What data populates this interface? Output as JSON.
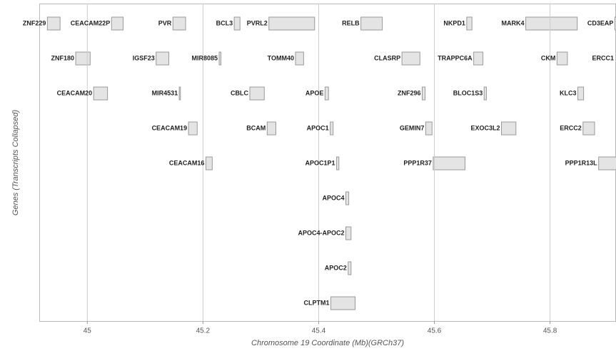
{
  "chart_data": {
    "type": "gene_track",
    "xlabel": "Chromosome 19 Coordinate (Mb)(GRCh37)",
    "ylabel": "Genes (Transcripts Collapsed)",
    "xlim": [
      44.917,
      45.914
    ],
    "xticks": [
      45,
      45.2,
      45.4,
      45.6,
      45.8
    ],
    "grid": true,
    "color": "#9a9a9a",
    "rows": [
      {
        "genes": [
          {
            "name": "ZNF229",
            "start": 44.931,
            "end": 44.953
          },
          {
            "name": "CEACAM22P",
            "start": 45.042,
            "end": 45.062
          },
          {
            "name": "PVR",
            "start": 45.148,
            "end": 45.17
          },
          {
            "name": "BCL3",
            "start": 45.254,
            "end": 45.264
          },
          {
            "name": "PVRL2",
            "start": 45.314,
            "end": 45.393
          },
          {
            "name": "RELB",
            "start": 45.473,
            "end": 45.51
          },
          {
            "name": "NKPD1",
            "start": 45.656,
            "end": 45.665
          },
          {
            "name": "MARK4",
            "start": 45.758,
            "end": 45.847
          },
          {
            "name": "CD3EAP",
            "start": 45.912,
            "end": 45.922
          }
        ]
      },
      {
        "genes": [
          {
            "name": "ZNF180",
            "start": 44.98,
            "end": 45.005
          },
          {
            "name": "IGSF23",
            "start": 45.119,
            "end": 45.141
          },
          {
            "name": "MIR8085",
            "start": 45.228,
            "end": 45.231
          },
          {
            "name": "TOMM40",
            "start": 45.36,
            "end": 45.374
          },
          {
            "name": "CLASRP",
            "start": 45.544,
            "end": 45.575
          },
          {
            "name": "TRAPPC6A",
            "start": 45.668,
            "end": 45.684
          },
          {
            "name": "CKM",
            "start": 45.812,
            "end": 45.83
          },
          {
            "name": "ERCC1",
            "start": 45.916,
            "end": 45.934
          }
        ]
      },
      {
        "genes": [
          {
            "name": "CEACAM20",
            "start": 45.011,
            "end": 45.035
          },
          {
            "name": "MIR4531",
            "start": 45.159,
            "end": 45.161
          },
          {
            "name": "CBLC",
            "start": 45.281,
            "end": 45.306
          },
          {
            "name": "APOE",
            "start": 45.411,
            "end": 45.417
          },
          {
            "name": "ZNF296",
            "start": 45.579,
            "end": 45.584
          },
          {
            "name": "BLOC1S3",
            "start": 45.686,
            "end": 45.69
          },
          {
            "name": "KLC3",
            "start": 45.848,
            "end": 45.858
          }
        ]
      },
      {
        "genes": [
          {
            "name": "CEACAM19",
            "start": 45.175,
            "end": 45.19
          },
          {
            "name": "BCAM",
            "start": 45.311,
            "end": 45.326
          },
          {
            "name": "APOC1",
            "start": 45.42,
            "end": 45.425
          },
          {
            "name": "GEMIN7",
            "start": 45.585,
            "end": 45.596
          },
          {
            "name": "EXOC3L2",
            "start": 45.716,
            "end": 45.741
          },
          {
            "name": "ERCC2",
            "start": 45.857,
            "end": 45.877
          }
        ]
      },
      {
        "genes": [
          {
            "name": "CEACAM16",
            "start": 45.205,
            "end": 45.216
          },
          {
            "name": "APOC1P1",
            "start": 45.431,
            "end": 45.435
          },
          {
            "name": "PPP1R37",
            "start": 45.598,
            "end": 45.653
          },
          {
            "name": "PPP1R13L",
            "start": 45.884,
            "end": 45.915
          }
        ]
      },
      {
        "genes": [
          {
            "name": "APOC4",
            "start": 45.447,
            "end": 45.452
          }
        ]
      },
      {
        "genes": [
          {
            "name": "APOC4-APOC2",
            "start": 45.447,
            "end": 45.456
          }
        ]
      },
      {
        "genes": [
          {
            "name": "APOC2",
            "start": 45.451,
            "end": 45.456
          }
        ]
      },
      {
        "genes": [
          {
            "name": "CLPTM1",
            "start": 45.421,
            "end": 45.463
          }
        ]
      }
    ]
  }
}
